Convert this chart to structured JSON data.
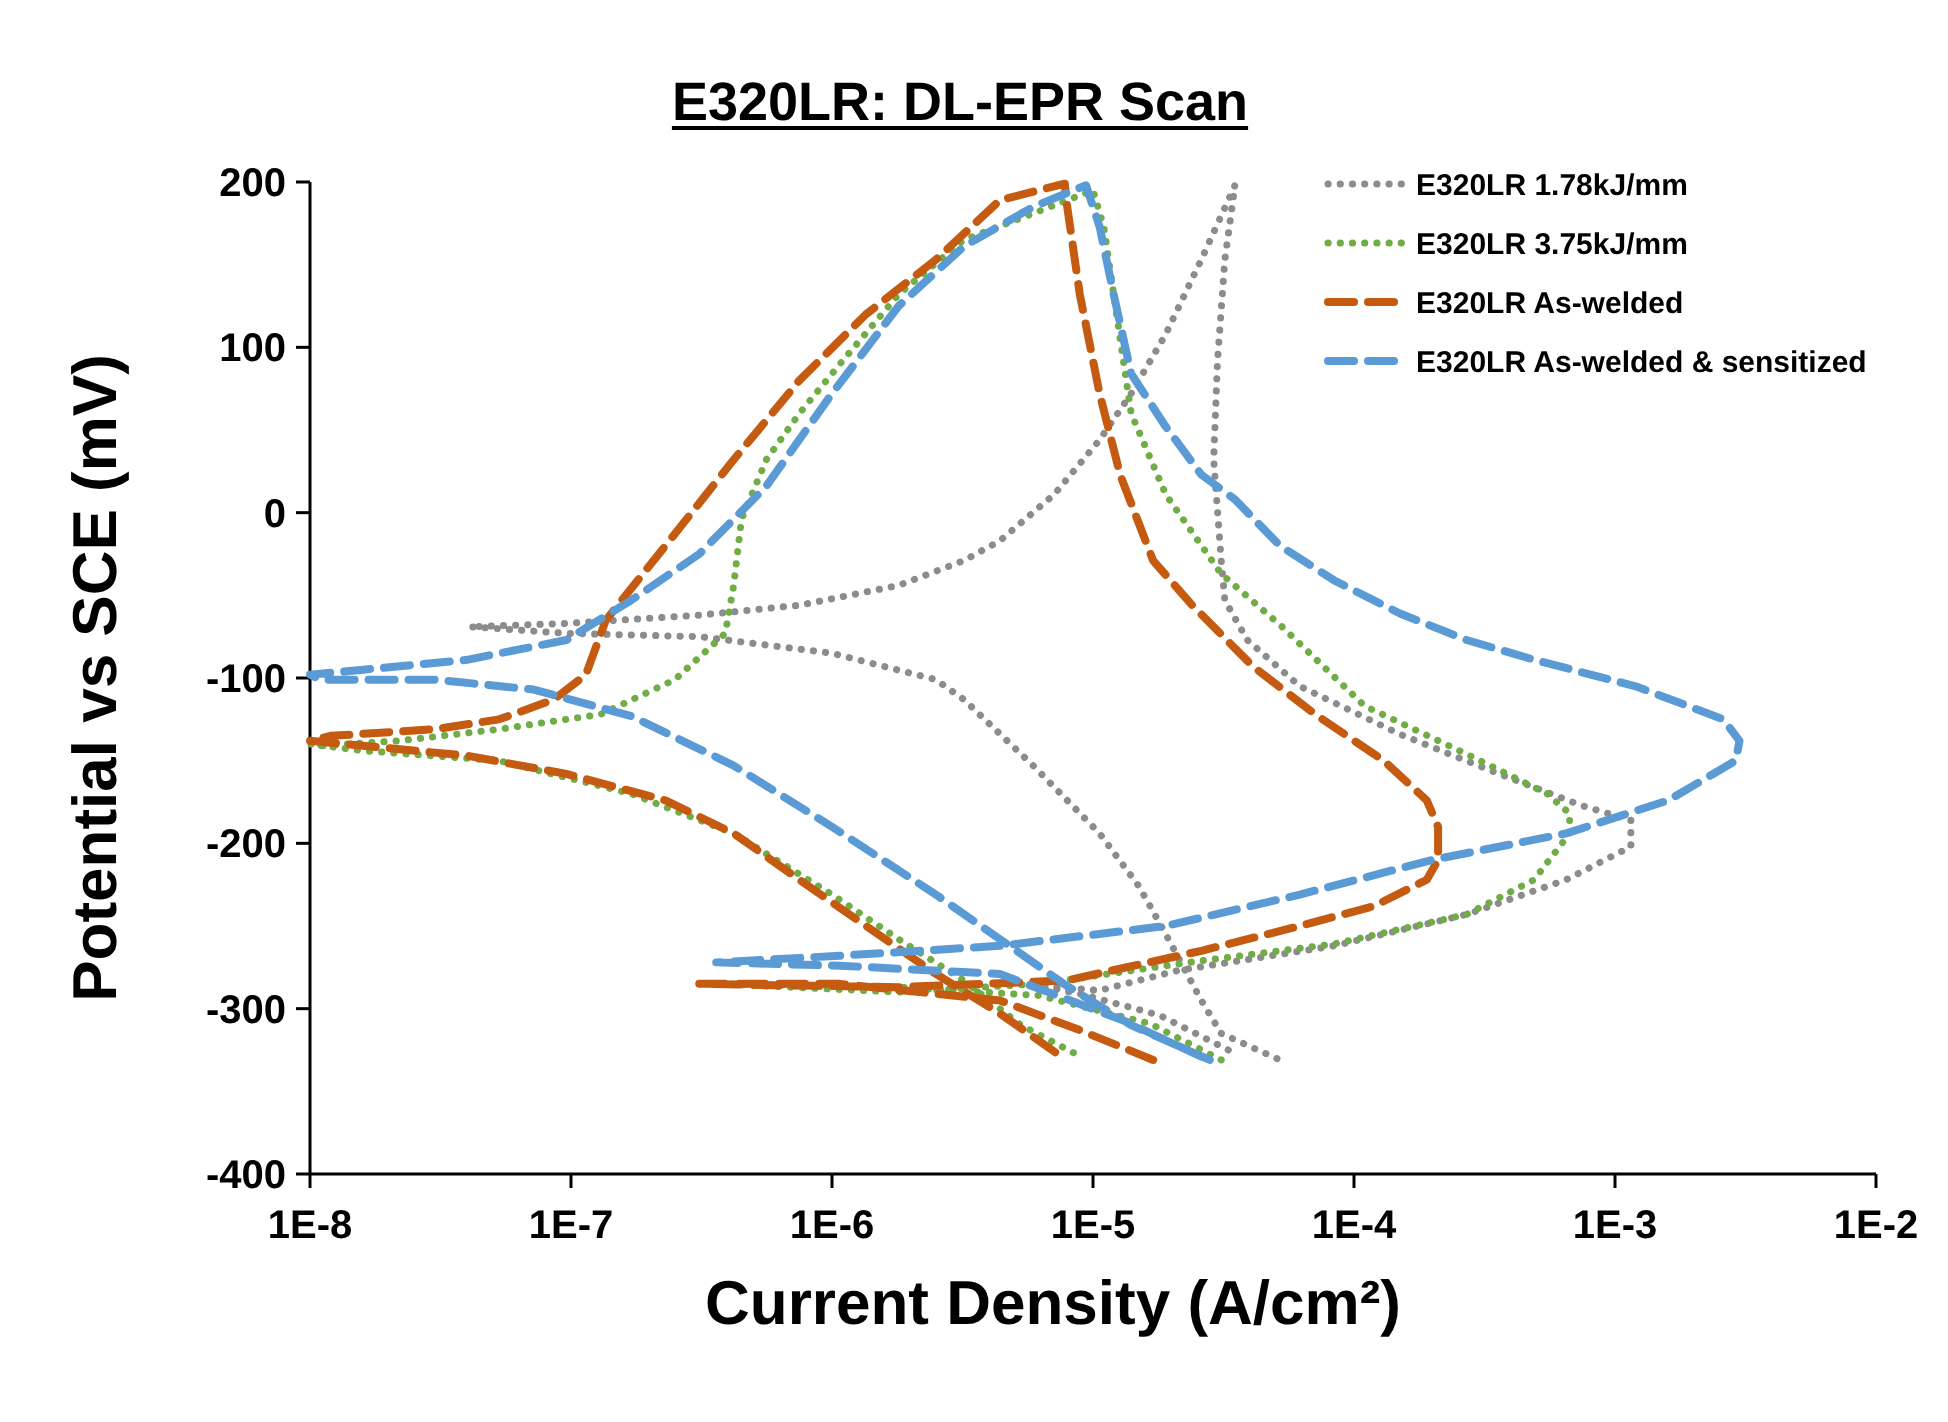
{
  "chart_data": {
    "type": "line",
    "title": "E320LR: DL-EPR Scan",
    "xlabel": "Current Density (A/cm²)",
    "ylabel": "Potential vs SCE (mV)",
    "log": "x",
    "xlim": [
      1e-08,
      0.01
    ],
    "xticks": [
      {
        "value": 1e-08,
        "label": "1E-8"
      },
      {
        "value": 1e-07,
        "label": "1E-7"
      },
      {
        "value": 1e-06,
        "label": "1E-6"
      },
      {
        "value": 1e-05,
        "label": "1E-5"
      },
      {
        "value": 0.0001,
        "label": "1E-4"
      },
      {
        "value": 0.001,
        "label": "1E-3"
      },
      {
        "value": 0.01,
        "label": "1E-2"
      }
    ],
    "ylim": [
      -400,
      200
    ],
    "yticks": [
      -400,
      -300,
      -200,
      -100,
      0,
      100,
      200
    ],
    "grid": false,
    "legend": "top right",
    "marker": "none",
    "series": [
      {
        "name": "E320LR 1.78kJ/mm",
        "color": "#8c8c8c",
        "line_style": "dotted",
        "x": [
          3.3e-05,
          1.8e-05,
          8.9e-06,
          6.2e-06,
          1.06e-05,
          2.1e-05,
          8.4e-05,
          0.00027,
          0.00065,
          0.00115,
          0.00115,
          0.00074,
          0.00036,
          0.00015,
          6.2e-05,
          3.9e-05,
          3.2e-05,
          3.1e-05,
          2.9e-05,
          3e-05,
          3.2e-05,
          3.5e-05,
          2.6e-05,
          1.9e-05,
          1.4e-05,
          1.06e-05,
          7.1e-06,
          4.4e-06,
          3.2e-06,
          1.8e-06,
          7.5e-07,
          3.1e-07,
          9.6e-08,
          4.1e-08,
          9.6e-08,
          3.1e-07,
          1e-06,
          2.5e-06,
          3.2e-06,
          5.9e-06,
          1.06e-05,
          1.5e-05,
          1.9e-05,
          2.6e-05,
          3.1e-05,
          5.2e-05
        ],
        "values": [
          -325,
          -304,
          -291,
          -286,
          -289,
          -277,
          -262,
          -243,
          -222,
          -202,
          -186,
          -177,
          -158,
          -134,
          -105,
          -77,
          -53,
          -29,
          32,
          92,
          153,
          198,
          153,
          108,
          72,
          44,
          11,
          -17,
          -29,
          -44,
          -56,
          -62,
          -67,
          -69,
          -73,
          -75,
          -85,
          -101,
          -113,
          -153,
          -194,
          -226,
          -255,
          -295,
          -315,
          -331
        ]
      },
      {
        "name": "E320LR 3.75kJ/mm",
        "color": "#70ad47",
        "line_style": "dotted",
        "x": [
          3.1e-05,
          1.65e-05,
          6.2e-06,
          1.8e-06,
          3.7e-07,
          1.8e-06,
          6.2e-06,
          2.6e-05,
          8.3e-05,
          0.00027,
          0.00049,
          0.00067,
          0.00067,
          0.00055,
          0.00027,
          0.00011,
          5.3e-05,
          3.1e-05,
          1.9e-05,
          1.4e-05,
          1.2e-05,
          1.1e-05,
          1e-05,
          5.9e-06,
          3.2e-06,
          1.8e-06,
          1.1e-06,
          7.5e-07,
          5.6e-07,
          4.5e-07,
          4.2e-07,
          3.9e-07,
          2.5e-07,
          1.3e-07,
          5.3e-08,
          2.2e-08,
          1.1e-08,
          1e-08,
          1.6e-08,
          5.3e-08,
          1.7e-07,
          4.2e-07,
          1e-06,
          1.8e-06,
          3.2e-06,
          5.3e-06,
          8.5e-06
        ],
        "values": [
          -331,
          -309,
          -292,
          -287,
          -285,
          -290,
          -285,
          -271,
          -261,
          -243,
          -222,
          -194,
          -182,
          -170,
          -146,
          -117,
          -69,
          -37,
          11,
          60,
          132,
          173,
          195,
          181,
          165,
          132,
          92,
          60,
          32,
          -4,
          -44,
          -73,
          -101,
          -122,
          -131,
          -138,
          -141,
          -140,
          -144,
          -150,
          -170,
          -194,
          -231,
          -258,
          -283,
          -310,
          -327
        ]
      },
      {
        "name": "E320LR As-welded",
        "color": "#c55a11",
        "line_style": "dashed",
        "x": [
          1.7e-05,
          8.9e-06,
          4.4e-06,
          1.07e-06,
          3.1e-07,
          1.8e-06,
          7.9e-06,
          2.6e-05,
          6.2e-05,
          0.000119,
          0.00019,
          0.00021,
          0.00021,
          0.00019,
          0.00013,
          7.1e-05,
          4.1e-05,
          2.4e-05,
          1.7e-05,
          1.27e-05,
          1.06e-05,
          8.9e-06,
          7.9e-06,
          7.8e-06,
          4.4e-06,
          2.5e-06,
          1.35e-06,
          7.5e-07,
          4.2e-07,
          2.3e-07,
          1.36e-07,
          1.14e-07,
          8.6e-08,
          5.3e-08,
          3e-08,
          1.2e-08,
          1e-08,
          1.6e-08,
          4e-08,
          9.6e-08,
          2.3e-07,
          4.2e-07,
          7.5e-07,
          1.35e-06,
          2.5e-06,
          4.4e-06,
          7.9e-06
        ],
        "values": [
          -331,
          -313,
          -295,
          -285,
          -285,
          -287,
          -283,
          -265,
          -250,
          -238,
          -222,
          -210,
          -190,
          -174,
          -150,
          -122,
          -93,
          -56,
          -29,
          23,
          72,
          132,
          189,
          199,
          189,
          153,
          120,
          80,
          32,
          -20,
          -65,
          -98,
          -113,
          -125,
          -131,
          -135,
          -138,
          -141,
          -147,
          -158,
          -174,
          -194,
          -222,
          -250,
          -279,
          -303,
          -331
        ]
      },
      {
        "name": "E320LR As-welded & sensitized",
        "color": "#5b9bd5",
        "line_style": "dashed",
        "x": [
          2.6e-05,
          1.3e-05,
          4.4e-06,
          1.07e-06,
          3.6e-07,
          1.07e-06,
          4.4e-06,
          1.9e-05,
          6.2e-05,
          0.0002,
          0.00065,
          0.0016,
          0.0029,
          0.003,
          0.0026,
          0.0012,
          0.00049,
          0.00027,
          0.00015,
          8.4e-05,
          5.2e-05,
          3.5e-05,
          2.6e-05,
          1.9e-05,
          1.4e-05,
          1.2e-05,
          1.06e-05,
          9.4e-06,
          5.9e-06,
          3.2e-06,
          1.8e-06,
          1e-06,
          5.6e-07,
          3.1e-07,
          1.7e-07,
          9.6e-08,
          4e-08,
          1.6e-08,
          1e-08,
          1.1e-08,
          3e-08,
          7.2e-08,
          1.7e-07,
          4.2e-07,
          1e-06,
          2.5e-06,
          4.4e-06,
          7.9e-06,
          1.4e-05,
          2.8e-05
        ],
        "values": [
          -329,
          -307,
          -279,
          -274,
          -272,
          -268,
          -262,
          -250,
          -231,
          -210,
          -194,
          -174,
          -150,
          -138,
          -125,
          -105,
          -89,
          -77,
          -61,
          -41,
          -20,
          8,
          23,
          52,
          84,
          132,
          173,
          198,
          185,
          161,
          125,
          72,
          16,
          -25,
          -53,
          -77,
          -89,
          -95,
          -98,
          -101,
          -101,
          -107,
          -123,
          -153,
          -190,
          -231,
          -258,
          -286,
          -310,
          -331
        ]
      }
    ]
  }
}
